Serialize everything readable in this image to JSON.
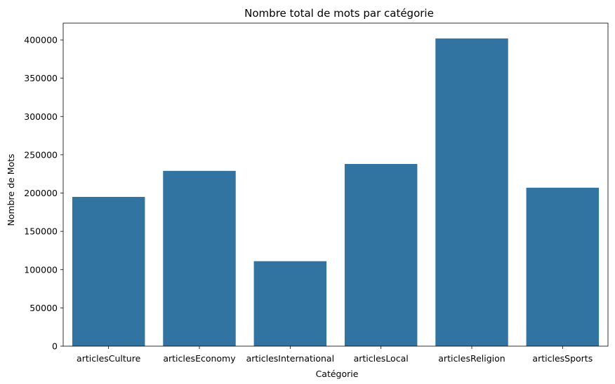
{
  "chart_data": {
    "type": "bar",
    "title": "Nombre total de mots par catégorie",
    "xlabel": "Catégorie",
    "ylabel": "Nombre de Mots",
    "categories": [
      "articlesCulture",
      "articlesEconomy",
      "articlesInternational",
      "articlesLocal",
      "articlesReligion",
      "articlesSports"
    ],
    "values": [
      195000,
      229000,
      111000,
      238000,
      402000,
      207000
    ],
    "ylim": [
      0,
      422000
    ],
    "yticks": [
      0,
      50000,
      100000,
      150000,
      200000,
      250000,
      300000,
      350000,
      400000
    ],
    "bar_color": "#3274a1",
    "grid": false,
    "legend": false
  }
}
